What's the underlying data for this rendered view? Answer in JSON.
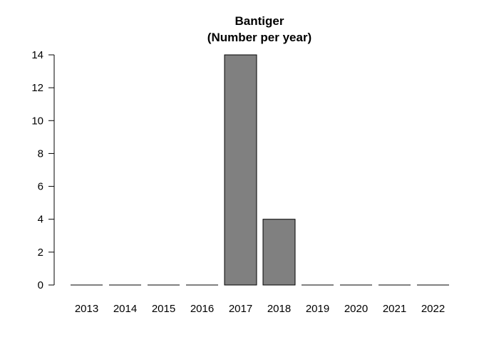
{
  "chart_data": {
    "type": "bar",
    "title": "Bantiger",
    "subtitle": "(Number per year)",
    "xlabel": "",
    "ylabel": "",
    "categories": [
      "2013",
      "2014",
      "2015",
      "2016",
      "2017",
      "2018",
      "2019",
      "2020",
      "2021",
      "2022"
    ],
    "values": [
      0,
      0,
      0,
      0,
      14,
      4,
      0,
      0,
      0,
      0
    ],
    "ylim": [
      0,
      14
    ],
    "yticks": [
      0,
      2,
      4,
      6,
      8,
      10,
      12,
      14
    ],
    "grid": false,
    "legend": "none",
    "bar_color": "#808080",
    "bar_edge_color": "#000000"
  }
}
